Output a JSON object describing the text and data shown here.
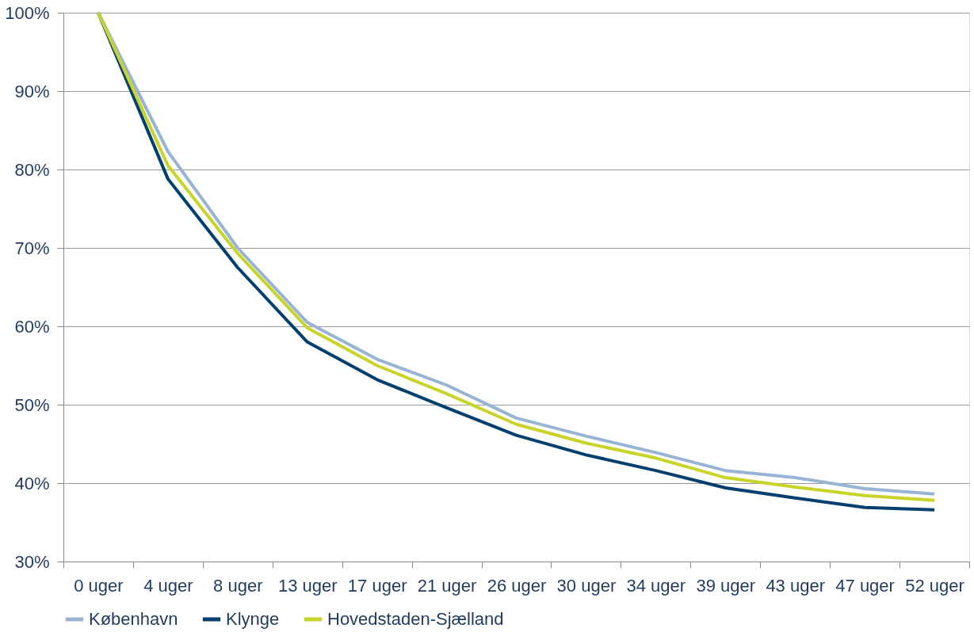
{
  "chart_data": {
    "type": "line",
    "categories": [
      "0 uger",
      "4 uger",
      "8 uger",
      "13 uger",
      "17 uger",
      "21 uger",
      "26 uger",
      "30 uger",
      "34 uger",
      "39 uger",
      "43 uger",
      "47 uger",
      "52 uger"
    ],
    "series": [
      {
        "name": "København",
        "color": "#98b4d4",
        "values": [
          100,
          82.3,
          70.0,
          60.5,
          55.8,
          52.5,
          48.3,
          46.0,
          43.9,
          41.6,
          40.7,
          39.3,
          38.6
        ]
      },
      {
        "name": "Klynge",
        "color": "#003f6e",
        "values": [
          100,
          78.8,
          67.5,
          58.0,
          53.2,
          49.6,
          46.1,
          43.6,
          41.6,
          39.4,
          38.1,
          36.9,
          36.6
        ]
      },
      {
        "name": "Hovedstaden-Sjælland",
        "color": "#c8d42a",
        "values": [
          100,
          80.5,
          69.3,
          59.8,
          55.0,
          51.4,
          47.5,
          45.1,
          43.2,
          40.7,
          39.5,
          38.4,
          37.8
        ]
      }
    ],
    "ylim": [
      30,
      100
    ],
    "yticks": [
      {
        "value": 30,
        "label": "30%"
      },
      {
        "value": 40,
        "label": "40%"
      },
      {
        "value": 50,
        "label": "50%"
      },
      {
        "value": 60,
        "label": "60%"
      },
      {
        "value": 70,
        "label": "70%"
      },
      {
        "value": 80,
        "label": "80%"
      },
      {
        "value": 90,
        "label": "90%"
      },
      {
        "value": 100,
        "label": "100%"
      }
    ],
    "grid": "y",
    "legend": "bottom",
    "marker": "none",
    "line_style": "solid"
  }
}
